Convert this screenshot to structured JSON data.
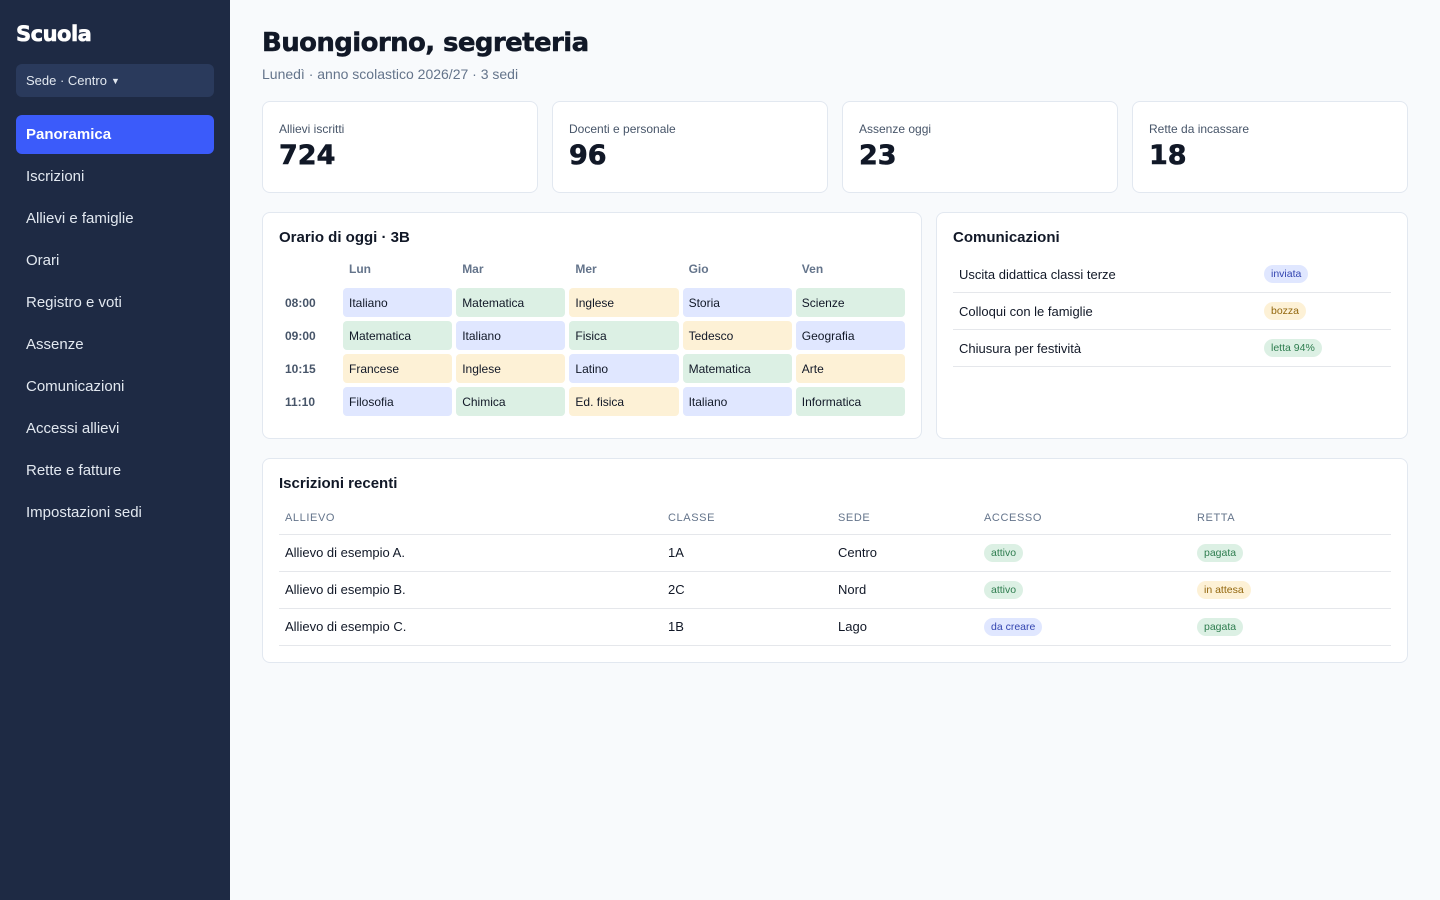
{
  "sidebar": {
    "brand": "Scuola",
    "site_select": "Sede · Centro",
    "items": [
      {
        "label": "Panoramica"
      },
      {
        "label": "Iscrizioni"
      },
      {
        "label": "Allievi e famiglie"
      },
      {
        "label": "Orari"
      },
      {
        "label": "Registro e voti"
      },
      {
        "label": "Assenze"
      },
      {
        "label": "Comunicazioni"
      },
      {
        "label": "Accessi allievi"
      },
      {
        "label": "Rette e fatture"
      },
      {
        "label": "Impostazioni sedi"
      }
    ],
    "active_index": 0
  },
  "header": {
    "title": "Buongiorno, segreteria",
    "subtitle": "Lunedì · anno scolastico 2026/27 · 3 sedi"
  },
  "stats": [
    {
      "label": "Allievi iscritti",
      "value": "724"
    },
    {
      "label": "Docenti e personale",
      "value": "96"
    },
    {
      "label": "Assenze oggi",
      "value": "23"
    },
    {
      "label": "Rette da incassare",
      "value": "18"
    }
  ],
  "schedule": {
    "title": "Orario di oggi · 3B",
    "days": [
      "Lun",
      "Mar",
      "Mer",
      "Gio",
      "Ven"
    ],
    "rows": [
      {
        "time": "08:00",
        "cells": [
          {
            "subject": "Italiano",
            "color": "#e0e7ff"
          },
          {
            "subject": "Matematica",
            "color": "#dcf0e4"
          },
          {
            "subject": "Inglese",
            "color": "#fdf1d6"
          },
          {
            "subject": "Storia",
            "color": "#e0e7ff"
          },
          {
            "subject": "Scienze",
            "color": "#dcf0e4"
          }
        ]
      },
      {
        "time": "09:00",
        "cells": [
          {
            "subject": "Matematica",
            "color": "#dcf0e4"
          },
          {
            "subject": "Italiano",
            "color": "#e0e7ff"
          },
          {
            "subject": "Fisica",
            "color": "#dcf0e4"
          },
          {
            "subject": "Tedesco",
            "color": "#fdf1d6"
          },
          {
            "subject": "Geografia",
            "color": "#e0e7ff"
          }
        ]
      },
      {
        "time": "10:15",
        "cells": [
          {
            "subject": "Francese",
            "color": "#fdf1d6"
          },
          {
            "subject": "Inglese",
            "color": "#fdf1d6"
          },
          {
            "subject": "Latino",
            "color": "#e0e7ff"
          },
          {
            "subject": "Matematica",
            "color": "#dcf0e4"
          },
          {
            "subject": "Arte",
            "color": "#fdf1d6"
          }
        ]
      },
      {
        "time": "11:10",
        "cells": [
          {
            "subject": "Filosofia",
            "color": "#e0e7ff"
          },
          {
            "subject": "Chimica",
            "color": "#dcf0e4"
          },
          {
            "subject": "Ed. fisica",
            "color": "#fdf1d6"
          },
          {
            "subject": "Italiano",
            "color": "#e0e7ff"
          },
          {
            "subject": "Informatica",
            "color": "#dcf0e4"
          }
        ]
      }
    ]
  },
  "communications": {
    "title": "Comunicazioni",
    "items": [
      {
        "title": "Uscita didattica classi terze",
        "status": "inviata",
        "tone": "blue"
      },
      {
        "title": "Colloqui con le famiglie",
        "status": "bozza",
        "tone": "yellow"
      },
      {
        "title": "Chiusura per festività",
        "status": "letta 94%",
        "tone": "green"
      }
    ]
  },
  "enrollments": {
    "title": "Iscrizioni recenti",
    "columns": [
      "ALLIEVO",
      "CLASSE",
      "SEDE",
      "ACCESSO",
      "RETTA"
    ],
    "rows": [
      {
        "student": "Allievo di esempio A.",
        "class": "1A",
        "site": "Centro",
        "access": "attivo",
        "access_tone": "green",
        "fee": "pagata",
        "fee_tone": "green"
      },
      {
        "student": "Allievo di esempio B.",
        "class": "2C",
        "site": "Nord",
        "access": "attivo",
        "access_tone": "green",
        "fee": "in attesa",
        "fee_tone": "yellow"
      },
      {
        "student": "Allievo di esempio C.",
        "class": "1B",
        "site": "Lago",
        "access": "da creare",
        "access_tone": "blue",
        "fee": "pagata",
        "fee_tone": "green"
      }
    ]
  },
  "colors": {
    "sidebar_bg": "#1e2a44",
    "accent": "#3b5bfa",
    "blue_soft": "#e0e7ff",
    "green_soft": "#dcf0e4",
    "yellow_soft": "#fdf1d6"
  }
}
